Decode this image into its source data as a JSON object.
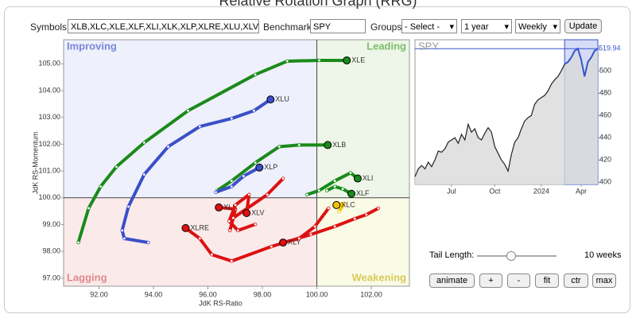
{
  "title": "Relative Rotation Graph (RRG)",
  "controls": {
    "symbols_label": "Symbols:",
    "symbols": "XLB,XLC,XLE,XLF,XLI,XLK,XLP,XLRE,XLU,XLV,XL",
    "benchmark_label": "Benchmark:",
    "benchmark": "SPY",
    "groups_label": "Groups:",
    "groups": "- Select -",
    "period": "1 year",
    "interval": "Weekly",
    "update": "Update"
  },
  "chart_data": [
    {
      "type": "rrg",
      "xlabel": "JdK RS-Ratio",
      "ylabel": "JdK RS-Momentum",
      "xlim": [
        90.7,
        103.4
      ],
      "ylim": [
        96.7,
        105.9
      ],
      "xticks": [
        {
          "value": 92,
          "label": "92.00"
        },
        {
          "value": 94,
          "label": "94.00"
        },
        {
          "value": 96,
          "label": "96.00"
        },
        {
          "value": 98,
          "label": "98.00"
        },
        {
          "value": 100,
          "label": "100.00"
        },
        {
          "value": 102,
          "label": "102.00"
        }
      ],
      "yticks": [
        {
          "value": 97,
          "label": "97.00"
        },
        {
          "value": 98,
          "label": "98.00"
        },
        {
          "value": 99,
          "label": "99.00"
        },
        {
          "value": 100,
          "label": "100.00"
        },
        {
          "value": 101,
          "label": "101.00"
        },
        {
          "value": 102,
          "label": "102.00"
        },
        {
          "value": 103,
          "label": "103.00"
        },
        {
          "value": 104,
          "label": "104.00"
        },
        {
          "value": 105,
          "label": "105.00"
        }
      ],
      "center": [
        100,
        100
      ],
      "quadrants": [
        {
          "name": "Improving",
          "color": "#eef0fb",
          "text_color": "#7a86d8"
        },
        {
          "name": "Leading",
          "color": "#edf6e8",
          "text_color": "#7cbf6a"
        },
        {
          "name": "Lagging",
          "color": "#fbeaea",
          "text_color": "#e08a8a"
        },
        {
          "name": "Weakening",
          "color": "#fafbe6",
          "text_color": "#d8c95a"
        }
      ],
      "series": [
        {
          "name": "XLE",
          "color": "#1a8a1a",
          "x": [
            91.24,
            91.62,
            92.06,
            92.64,
            93.66,
            95.27,
            97.74,
            98.91,
            100.09,
            101.1
          ],
          "values": [
            98.33,
            99.61,
            100.42,
            101.16,
            102.06,
            103.25,
            104.6,
            105.1,
            105.13,
            105.13
          ]
        },
        {
          "name": "XLU",
          "color": "#3a4fc8",
          "x": [
            93.81,
            92.93,
            92.85,
            93.08,
            93.66,
            94.54,
            95.7,
            96.87,
            97.69,
            98.3
          ],
          "values": [
            98.33,
            98.48,
            98.78,
            99.67,
            100.87,
            101.91,
            102.66,
            102.96,
            103.25,
            103.67
          ]
        },
        {
          "name": "XLB",
          "color": "#1a8a1a",
          "x": [
            96.34,
            96.87,
            97.74,
            98.62,
            99.35,
            100.4
          ],
          "values": [
            100.27,
            100.63,
            101.31,
            101.91,
            101.97,
            101.97
          ]
        },
        {
          "name": "XLP",
          "color": "#3a4fc8",
          "x": [
            96.29,
            96.87,
            97.31,
            97.89
          ],
          "values": [
            100.21,
            100.42,
            100.81,
            101.13
          ]
        },
        {
          "name": "XLI",
          "color": "#1a8a1a",
          "x": [
            99.64,
            100.08,
            100.66,
            101.24,
            101.5
          ],
          "values": [
            100.12,
            100.27,
            100.63,
            100.93,
            100.72
          ]
        },
        {
          "name": "XLF",
          "color": "#1a8a1a",
          "x": [
            100.37,
            100.66,
            100.95,
            101.27
          ],
          "values": [
            100.27,
            100.42,
            100.33,
            100.15
          ]
        },
        {
          "name": "XLC",
          "color": "#f2c200",
          "x": [
            100.81,
            101.01,
            100.72
          ],
          "values": [
            99.49,
            99.79,
            99.73
          ]
        },
        {
          "name": "XLK",
          "color": "#dd1111",
          "x": [
            98.76,
            98.18,
            97.45,
            96.93,
            96.81,
            97.01,
            96.4
          ],
          "values": [
            100.72,
            100.12,
            99.61,
            99.25,
            98.78,
            99.58,
            99.64
          ]
        },
        {
          "name": "XLV",
          "color": "#dd1111",
          "x": [
            97.74,
            97.1,
            96.78,
            97.01,
            97.51,
            97.42
          ],
          "values": [
            99.01,
            98.78,
            99.13,
            99.73,
            100.12,
            99.43
          ]
        },
        {
          "name": "XLRE",
          "color": "#dd1111",
          "x": [
            102.26,
            101.82,
            101.39,
            100.66,
            99.78,
            98.33,
            96.87,
            96.14,
            95.7,
            95.18
          ],
          "values": [
            99.61,
            99.37,
            99.22,
            98.93,
            98.63,
            98.18,
            97.64,
            97.88,
            98.48,
            98.87
          ]
        },
        {
          "name": "XLY",
          "color": "#dd1111",
          "x": [
            100.43,
            99.93,
            99.35,
            98.76
          ],
          "values": [
            99.61,
            98.93,
            98.48,
            98.33
          ]
        }
      ]
    },
    {
      "type": "area",
      "title": "SPY",
      "color": "#222222",
      "tail_color": "#3355cc",
      "fill": "#d9d9d9",
      "values": [
        405,
        412,
        415,
        412,
        418,
        414,
        420,
        428,
        427,
        430,
        436,
        438,
        440,
        435,
        443,
        438,
        452,
        445,
        448,
        440,
        438,
        444,
        449,
        445,
        432,
        426,
        420,
        416,
        410,
        425,
        436,
        440,
        448,
        455,
        458,
        460,
        470,
        474,
        476,
        478,
        482,
        488,
        492,
        495,
        500,
        506,
        508,
        512,
        518,
        520,
        510,
        495,
        508,
        512,
        518,
        519.94
      ],
      "xlim": [
        0,
        55
      ],
      "ylim": [
        398,
        528
      ],
      "xticks": [
        {
          "value": 11,
          "label": "Jul"
        },
        {
          "value": 24,
          "label": "Oct"
        },
        {
          "value": 38,
          "label": "2024"
        },
        {
          "value": 50,
          "label": "Apr"
        }
      ],
      "yticks": [
        400,
        420,
        440,
        460,
        480,
        500,
        520
      ]
    }
  ],
  "tail": {
    "label": "Tail Length:",
    "value": 10,
    "value_label": "10 weeks"
  },
  "buttons": [
    "animate",
    "+",
    "-",
    "fit",
    "ctr",
    "max"
  ]
}
